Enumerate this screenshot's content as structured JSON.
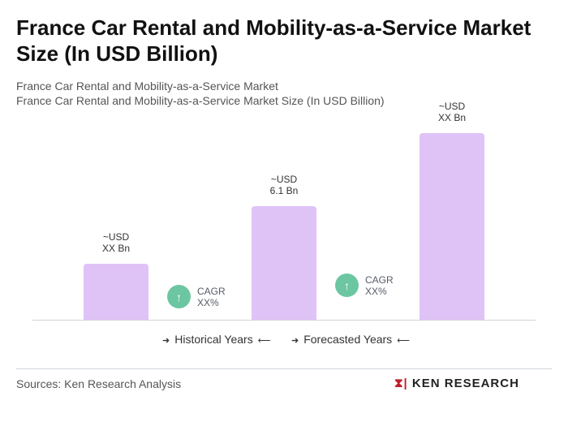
{
  "title": "France Car Rental and Mobility-as-a-Service Market Size (In USD Billion)",
  "subtitle1": "France Car Rental and Mobility-as-a-Service Market",
  "subtitle2": "France Car Rental and Mobility-as-a-Service Market Size (In USD Billion)",
  "chart_data": {
    "type": "bar",
    "categories": [
      "",
      "",
      ""
    ],
    "values": [
      null,
      6.1,
      null
    ],
    "relative_heights": [
      0.3,
      0.61,
      1.0
    ],
    "data_labels": [
      {
        "line1": "~USD",
        "line2": "XX Bn"
      },
      {
        "line1": "~USD",
        "line2": "6.1 Bn"
      },
      {
        "line1": "~USD",
        "line2": "XX Bn"
      }
    ],
    "cagr": [
      {
        "label": "CAGR",
        "value": "XX%",
        "icon": "arrow-up-icon"
      },
      {
        "label": "CAGR",
        "value": "XX%",
        "icon": "arrow-up-icon"
      }
    ],
    "legend": [
      "Historical Years",
      "Forecasted Years"
    ],
    "bar_color": "#dfc3f7",
    "cagr_color": "#6cc6a2",
    "grid": false
  },
  "footer": {
    "source": "Sources: Ken Research Analysis",
    "logo_text": "KEN RESEARCH"
  }
}
